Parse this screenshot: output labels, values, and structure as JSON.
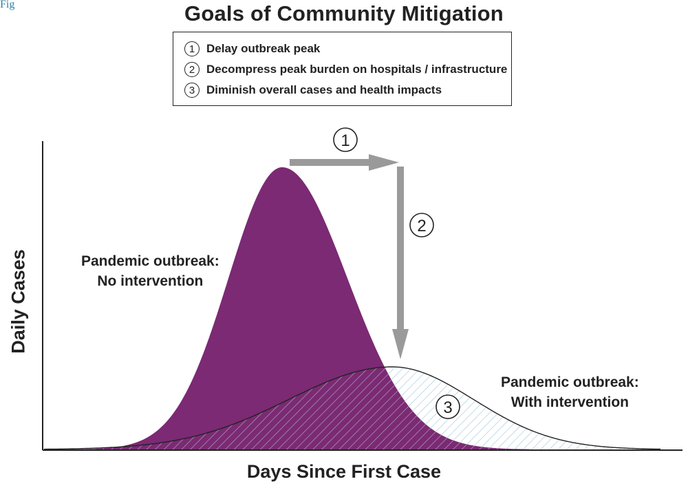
{
  "figure_label": "Figure",
  "title": "Goals of Community Mitigation",
  "legend": {
    "items": [
      {
        "number": "1",
        "text": "Delay outbreak peak"
      },
      {
        "number": "2",
        "text": "Decompress peak burden on hospitals / infrastructure"
      },
      {
        "number": "3",
        "text": "Diminish overall cases and health impacts"
      }
    ]
  },
  "axes": {
    "ylabel": "Daily Cases",
    "xlabel": "Days Since First Case"
  },
  "curves": {
    "no_intervention": {
      "label_line1": "Pandemic outbreak:",
      "label_line2": "No intervention",
      "color": "#7b2a73"
    },
    "with_intervention": {
      "label_line1": "Pandemic outbreak:",
      "label_line2": "With intervention",
      "hatch_color": "#9ec5d8"
    }
  },
  "markers": {
    "delay": "1",
    "decompress": "2",
    "diminish": "3"
  },
  "arrow_color": "#9a9a9a"
}
